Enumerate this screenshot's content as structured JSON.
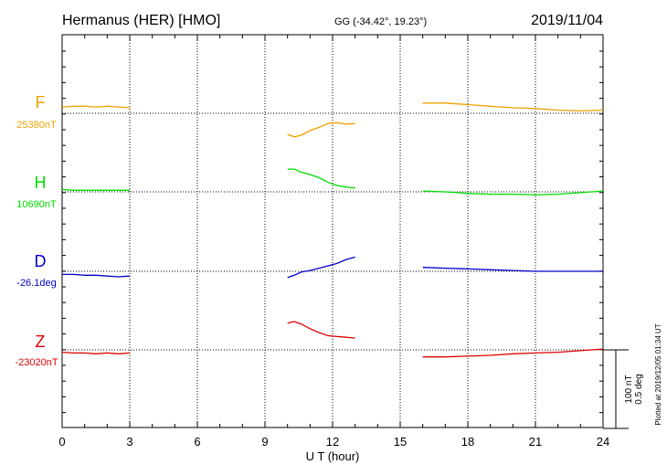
{
  "header": {
    "station": "Hermanus (HER)  [HMO]",
    "coords": "GG (-34.42°,  19.23°)",
    "date": "2019/11/04"
  },
  "side_note": "Plotted at 2019/12/05 01:34 UT",
  "scale_bar": {
    "line1": "100 nT",
    "line2": "0.5 deg"
  },
  "chart_data": {
    "type": "line",
    "xlabel": "U T (hour)",
    "xlim": [
      0,
      24
    ],
    "x_ticks": [
      "0",
      "3",
      "6",
      "9",
      "12",
      "15",
      "18",
      "21",
      "24"
    ],
    "grid": "dotted",
    "scale_per_band": "100 nT / 0.5 deg",
    "series": [
      {
        "name": "F",
        "baseline_label": "25380nT",
        "color": "#f0a000",
        "segments": [
          {
            "x": [
              0,
              0.5,
              1,
              1.5,
              2,
              2.5,
              3
            ],
            "y": [
              8,
              9,
              9,
              8,
              9,
              8,
              7
            ]
          },
          {
            "x": [
              10,
              10.3,
              10.6,
              11,
              11.4,
              11.8,
              12.2,
              12.6,
              13
            ],
            "y": [
              -27,
              -30,
              -28,
              -22,
              -18,
              -13,
              -12,
              -14,
              -13
            ]
          },
          {
            "x": [
              16,
              17,
              18,
              19,
              20,
              21,
              22,
              23,
              24
            ],
            "y": [
              13,
              13,
              11,
              9,
              7,
              6,
              4,
              3,
              4
            ]
          }
        ]
      },
      {
        "name": "H",
        "baseline_label": "10690nT",
        "color": "#00dd00",
        "segments": [
          {
            "x": [
              0,
              0.5,
              1,
              1.5,
              2,
              2.5,
              3
            ],
            "y": [
              3,
              2,
              2,
              2,
              2,
              2,
              2
            ]
          },
          {
            "x": [
              10,
              10.3,
              10.6,
              11,
              11.4,
              11.8,
              12.2,
              12.6,
              13
            ],
            "y": [
              29,
              29,
              25,
              22,
              18,
              12,
              8,
              6,
              5
            ]
          },
          {
            "x": [
              16,
              17,
              18,
              19,
              20,
              21,
              22,
              23,
              24
            ],
            "y": [
              1,
              0,
              -2,
              -3,
              -3,
              -4,
              -3,
              -1,
              1
            ]
          }
        ]
      },
      {
        "name": "D",
        "baseline_label": "-26.1deg",
        "color": "#0000cc",
        "segments": [
          {
            "x": [
              0,
              0.5,
              1,
              1.5,
              2,
              2.5,
              3
            ],
            "y": [
              -4,
              -4,
              -5,
              -5,
              -6,
              -7,
              -6
            ]
          },
          {
            "x": [
              10,
              10.3,
              10.6,
              11,
              11.4,
              11.8,
              12.2,
              12.6,
              13
            ],
            "y": [
              -8,
              -5,
              -1,
              1,
              4,
              7,
              10,
              15,
              18
            ]
          },
          {
            "x": [
              16,
              17,
              18,
              19,
              20,
              21,
              22,
              23,
              24
            ],
            "y": [
              5,
              4,
              3,
              2,
              1,
              0,
              0,
              0,
              0
            ]
          }
        ]
      },
      {
        "name": "Z",
        "baseline_label": "-23020nT",
        "color": "#dd0000",
        "segments": [
          {
            "x": [
              0,
              0.5,
              1,
              1.5,
              2,
              2.5,
              3
            ],
            "y": [
              -3,
              -4,
              -4,
              -5,
              -4,
              -5,
              -4
            ]
          },
          {
            "x": [
              10,
              10.3,
              10.6,
              11,
              11.4,
              11.8,
              12.2,
              12.6,
              13
            ],
            "y": [
              34,
              36,
              33,
              27,
              22,
              18,
              17,
              16,
              15
            ]
          },
          {
            "x": [
              16,
              17,
              18,
              19,
              20,
              21,
              22,
              23,
              24
            ],
            "y": [
              -9,
              -9,
              -8,
              -7,
              -5,
              -4,
              -3,
              -1,
              1
            ]
          }
        ]
      }
    ]
  }
}
